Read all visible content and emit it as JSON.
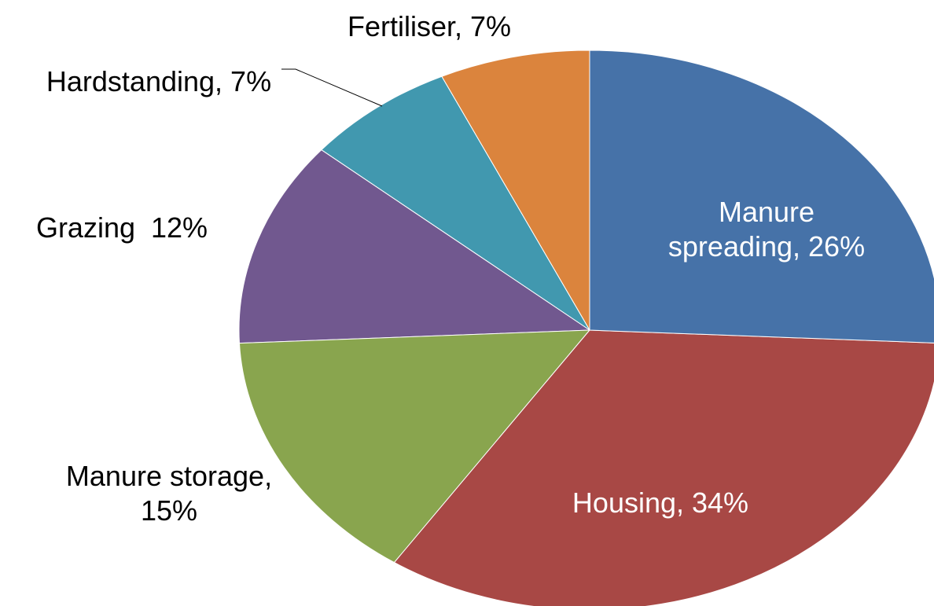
{
  "chart_data": {
    "type": "pie",
    "values": [
      26,
      34,
      15,
      12,
      7,
      7
    ],
    "value_labels": [
      "Manure spreading, 26%",
      "Housing, 34%",
      "Manure storage, 15%",
      "Grazing  12%",
      "Hardstanding, 7%",
      "Fertiliser, 7%"
    ],
    "colors": [
      "#4672a8",
      "#a84845",
      "#89a54e",
      "#71588f",
      "#4198af",
      "#db843d"
    ]
  }
}
